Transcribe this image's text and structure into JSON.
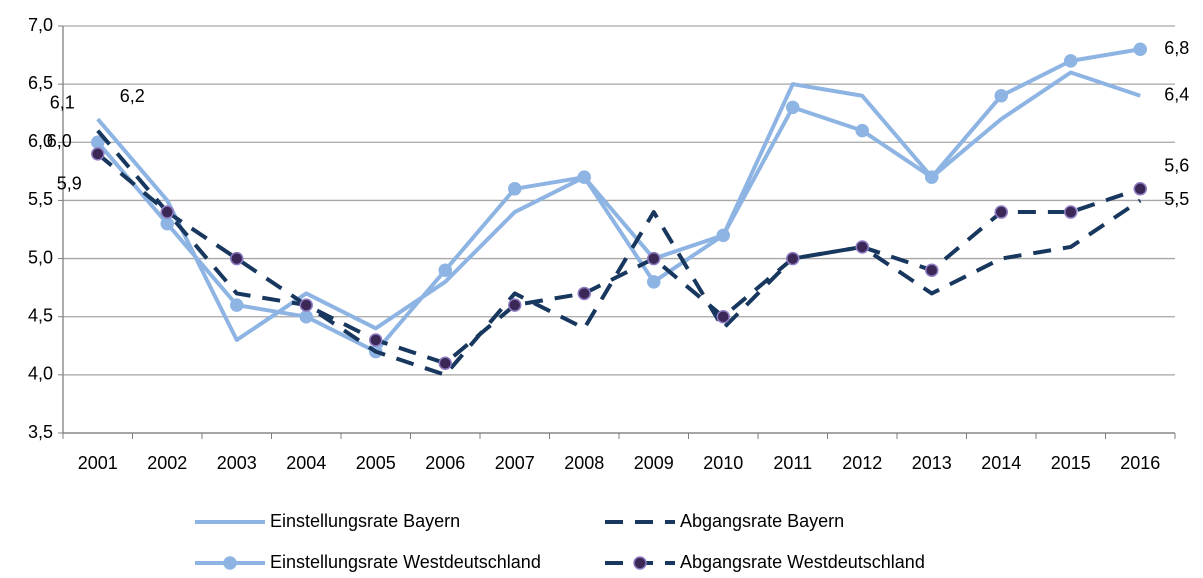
{
  "chart_data": {
    "type": "line",
    "categories": [
      "2001",
      "2002",
      "2003",
      "2004",
      "2005",
      "2006",
      "2007",
      "2008",
      "2009",
      "2010",
      "2011",
      "2012",
      "2013",
      "2014",
      "2015",
      "2016"
    ],
    "ylim": [
      3.5,
      7.0
    ],
    "yticks": [
      {
        "value": 3.5,
        "label": "3,5"
      },
      {
        "value": 4.0,
        "label": "4,0"
      },
      {
        "value": 4.5,
        "label": "4,5"
      },
      {
        "value": 5.0,
        "label": "5,0"
      },
      {
        "value": 5.5,
        "label": "5,5"
      },
      {
        "value": 6.0,
        "label": "6,0"
      },
      {
        "value": 6.5,
        "label": "6,5"
      },
      {
        "value": 7.0,
        "label": "7,0"
      }
    ],
    "grid": true,
    "legend": "bottom",
    "series": [
      {
        "name": "Einstellungsrate Bayern",
        "color": "#8eb4e3",
        "dashed": false,
        "markers": false,
        "values": [
          6.2,
          5.5,
          4.3,
          4.7,
          4.4,
          4.8,
          5.4,
          5.7,
          5.0,
          5.2,
          6.5,
          6.4,
          5.7,
          6.2,
          6.6,
          6.4
        ],
        "value_labels": [
          "6,2",
          null,
          null,
          null,
          null,
          null,
          null,
          null,
          null,
          null,
          null,
          null,
          null,
          null,
          null,
          "6,4"
        ]
      },
      {
        "name": "Einstellungsrate Westdeutschland",
        "color": "#8eb4e3",
        "dashed": false,
        "markers": true,
        "values": [
          6.0,
          5.3,
          4.6,
          4.5,
          4.2,
          4.9,
          5.6,
          5.7,
          4.8,
          5.2,
          6.3,
          6.1,
          5.7,
          6.4,
          6.7,
          6.8
        ],
        "value_labels": [
          "6,0",
          null,
          null,
          null,
          null,
          null,
          null,
          null,
          null,
          null,
          null,
          null,
          null,
          null,
          null,
          "6,8"
        ]
      },
      {
        "name": "Abgangsrate Bayern",
        "color": "#17375e",
        "dashed": true,
        "markers": false,
        "values": [
          6.1,
          5.4,
          4.7,
          4.6,
          4.2,
          4.0,
          4.7,
          4.4,
          5.4,
          4.4,
          5.0,
          5.1,
          4.7,
          5.0,
          5.1,
          5.5
        ],
        "value_labels": [
          "6,1",
          null,
          null,
          null,
          null,
          null,
          null,
          null,
          null,
          null,
          null,
          null,
          null,
          null,
          null,
          "5,5"
        ]
      },
      {
        "name": "Abgangsrate Westdeutschland",
        "color": "#17375e",
        "dashed": true,
        "markers": true,
        "values": [
          5.9,
          5.4,
          5.0,
          4.6,
          4.3,
          4.1,
          4.6,
          4.7,
          5.0,
          4.5,
          5.0,
          5.1,
          4.9,
          5.4,
          5.4,
          5.6
        ],
        "value_labels": [
          "5,9",
          null,
          null,
          null,
          null,
          null,
          null,
          null,
          null,
          null,
          null,
          null,
          null,
          null,
          null,
          "5,6"
        ]
      }
    ]
  }
}
